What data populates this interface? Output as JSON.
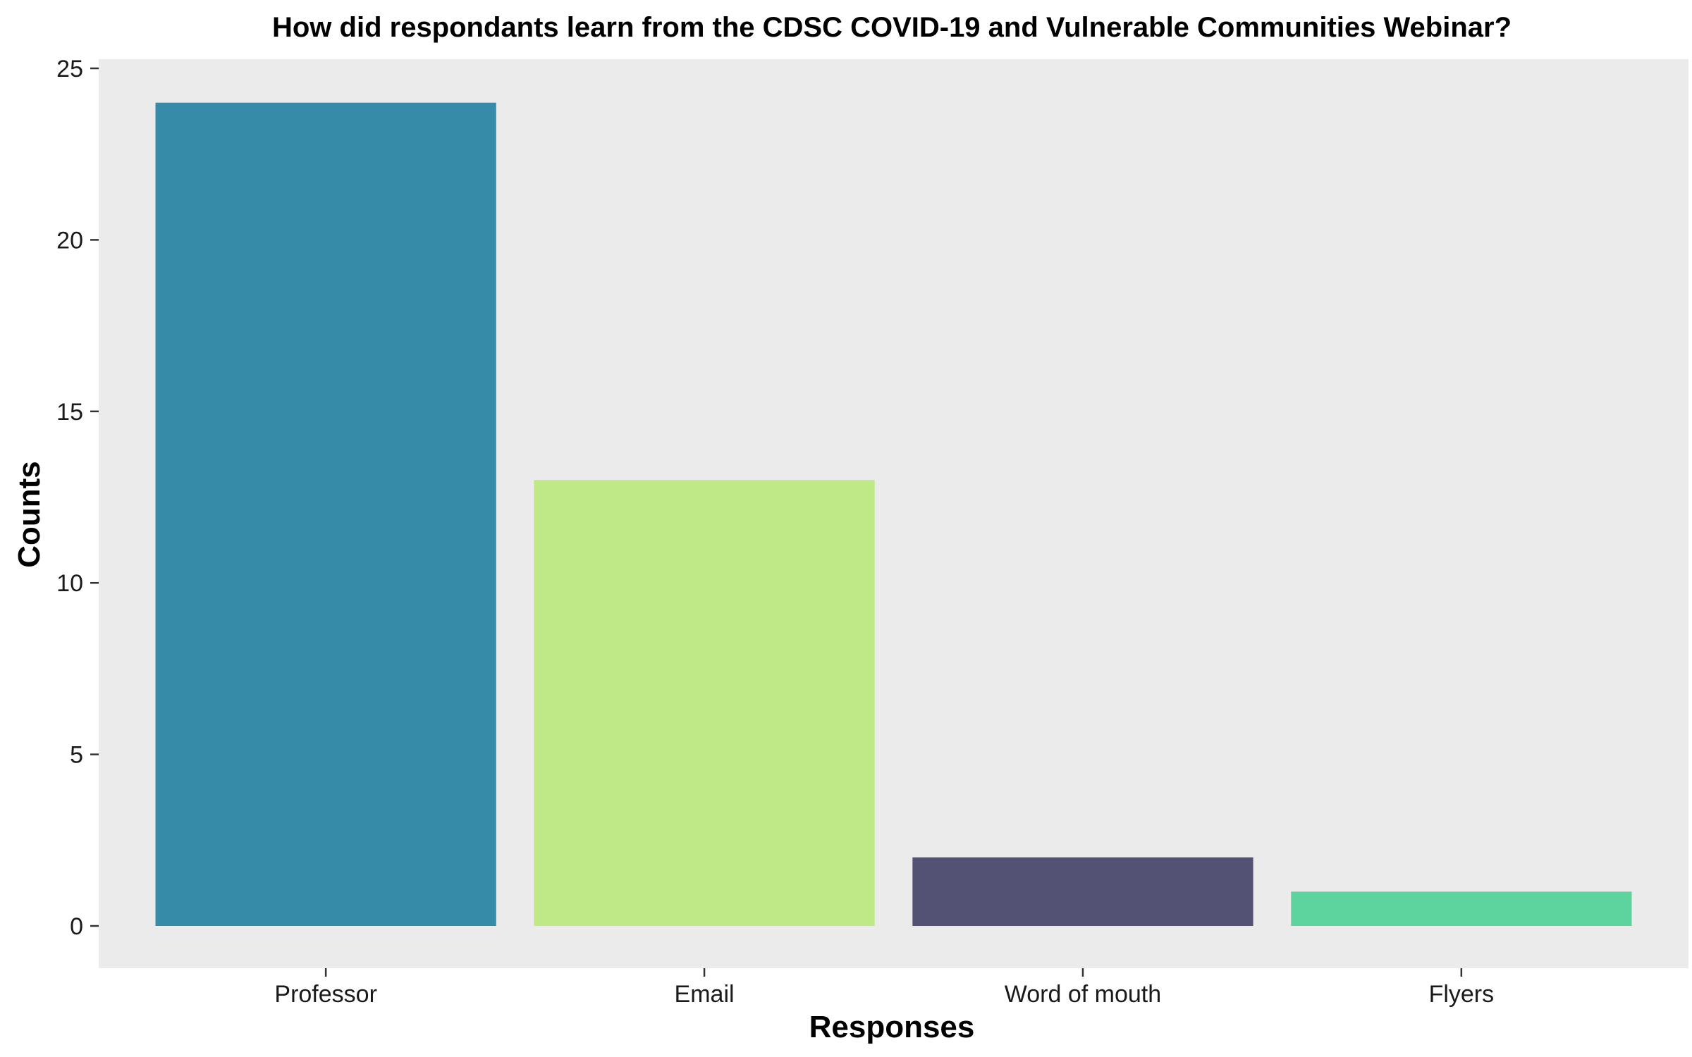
{
  "chart_data": {
    "type": "bar",
    "title": "How did respondants learn from the CDSC COVID-19 and Vulnerable Communities Webinar?",
    "xlabel": "Responses",
    "ylabel": "Counts",
    "categories": [
      "Professor",
      "Email",
      "Word of mouth",
      "Flyers"
    ],
    "values": [
      24,
      13,
      2,
      1
    ],
    "colors": [
      "#368BA8",
      "#BFE886",
      "#535274",
      "#5DD39E"
    ],
    "ylim": [
      0,
      25
    ],
    "yticks": [
      0,
      5,
      10,
      15,
      20,
      25
    ],
    "grid": false,
    "legend": "none",
    "panel_background": "#EBEBEB"
  }
}
